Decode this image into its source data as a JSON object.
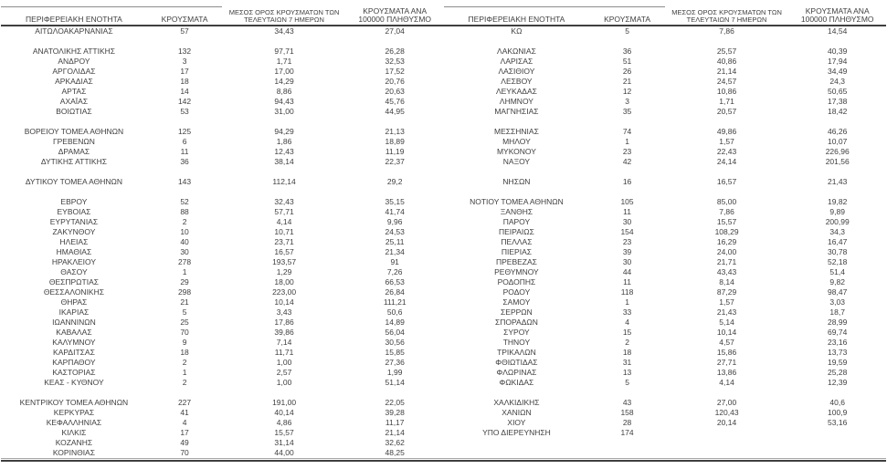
{
  "colors": {
    "text": "#3f3f3f",
    "thin_line": "#8c8c8c",
    "header_underline": "#595959",
    "thick_line": "#3f3f3f",
    "bottom_thin_line": "#a6a6a6"
  },
  "table": {
    "columns": [
      "ΠΕΡΙΦΕΡΕΙΑΚΗ ΕΝΟΤΗΤΑ",
      "ΚΡΟΥΣΜΑΤΑ",
      "ΜΕΣΟΣ ΟΡΟΣ ΚΡΟΥΣΜΑΤΩΝ ΤΩΝ ΤΕΛΕΥΤΑΙΩΝ 7 ΗΜΕΡΩΝ",
      "ΚΡΟΥΣΜΑΤΑ ΑΝΑ 100000 ΠΛΗΘΥΣΜΟ"
    ],
    "left_rows": [
      [
        "ΑΙΤΩΛΟΑΚΑΡΝΑΝΙΑΣ",
        "57",
        "34,43",
        "27,04"
      ],
      null,
      [
        "ΑΝΑΤΟΛΙΚΗΣ ΑΤΤΙΚΗΣ",
        "132",
        "97,71",
        "26,28"
      ],
      [
        "ΑΝΔΡΟΥ",
        "3",
        "1,71",
        "32,53"
      ],
      [
        "ΑΡΓΟΛΙΔΑΣ",
        "17",
        "17,00",
        "17,52"
      ],
      [
        "ΑΡΚΑΔΙΑΣ",
        "18",
        "14,29",
        "20,76"
      ],
      [
        "ΑΡΤΑΣ",
        "14",
        "8,86",
        "20,63"
      ],
      [
        "ΑΧΑΪΑΣ",
        "142",
        "94,43",
        "45,76"
      ],
      [
        "ΒΟΙΩΤΙΑΣ",
        "53",
        "31,00",
        "44,95"
      ],
      null,
      [
        "ΒΟΡΕΙΟΥ ΤΟΜΕΑ ΑΘΗΝΩΝ",
        "125",
        "94,29",
        "21,13"
      ],
      [
        "ΓΡΕΒΕΝΩΝ",
        "6",
        "1,86",
        "18,89"
      ],
      [
        "ΔΡΑΜΑΣ",
        "11",
        "12,43",
        "11,19"
      ],
      [
        "ΔΥΤΙΚΗΣ ΑΤΤΙΚΗΣ",
        "36",
        "38,14",
        "22,37"
      ],
      null,
      [
        "ΔΥΤΙΚΟΥ ΤΟΜΕΑ ΑΘΗΝΩΝ",
        "143",
        "112,14",
        "29,2"
      ],
      null,
      [
        "ΕΒΡΟΥ",
        "52",
        "32,43",
        "35,15"
      ],
      [
        "ΕΥΒΟΙΑΣ",
        "88",
        "57,71",
        "41,74"
      ],
      [
        "ΕΥΡΥΤΑΝΙΑΣ",
        "2",
        "4,14",
        "9,96"
      ],
      [
        "ΖΑΚΥΝΘΟΥ",
        "10",
        "10,71",
        "24,53"
      ],
      [
        "ΗΛΕΙΑΣ",
        "40",
        "23,71",
        "25,11"
      ],
      [
        "ΗΜΑΘΙΑΣ",
        "30",
        "16,57",
        "21,34"
      ],
      [
        "ΗΡΑΚΛΕΙΟΥ",
        "278",
        "193,57",
        "91"
      ],
      [
        "ΘΑΣΟΥ",
        "1",
        "1,29",
        "7,26"
      ],
      [
        "ΘΕΣΠΡΩΤΙΑΣ",
        "29",
        "18,00",
        "66,53"
      ],
      [
        "ΘΕΣΣΑΛΟΝΙΚΗΣ",
        "298",
        "223,00",
        "26,84"
      ],
      [
        "ΘΗΡΑΣ",
        "21",
        "10,14",
        "111,21"
      ],
      [
        "ΙΚΑΡΙΑΣ",
        "5",
        "3,43",
        "50,6"
      ],
      [
        "ΙΩΑΝΝΙΝΩΝ",
        "25",
        "17,86",
        "14,89"
      ],
      [
        "ΚΑΒΑΛΑΣ",
        "70",
        "39,86",
        "56,04"
      ],
      [
        "ΚΑΛΥΜΝΟΥ",
        "9",
        "7,14",
        "30,56"
      ],
      [
        "ΚΑΡΔΙΤΣΑΣ",
        "18",
        "11,71",
        "15,85"
      ],
      [
        "ΚΑΡΠΑΘΟΥ",
        "2",
        "1,00",
        "27,36"
      ],
      [
        "ΚΑΣΤΟΡΙΑΣ",
        "1",
        "2,57",
        "1,99"
      ],
      [
        "ΚΕΑΣ - ΚΥΘΝΟΥ",
        "2",
        "1,00",
        "51,14"
      ],
      null,
      [
        "ΚΕΝΤΡΙΚΟΥ ΤΟΜΕΑ ΑΘΗΝΩΝ",
        "227",
        "191,00",
        "22,05"
      ],
      [
        "ΚΕΡΚΥΡΑΣ",
        "41",
        "40,14",
        "39,28"
      ],
      [
        "ΚΕΦΑΛΛΗΝΙΑΣ",
        "4",
        "4,86",
        "11,17"
      ],
      [
        "ΚΙΛΚΙΣ",
        "17",
        "15,57",
        "21,14"
      ],
      [
        "ΚΟΖΑΝΗΣ",
        "49",
        "31,14",
        "32,62"
      ],
      [
        "ΚΟΡΙΝΘΙΑΣ",
        "70",
        "44,00",
        "48,25"
      ]
    ],
    "right_rows": [
      [
        "ΚΩ",
        "5",
        "7,86",
        "14,54"
      ],
      null,
      [
        "ΛΑΚΩΝΙΑΣ",
        "36",
        "25,57",
        "40,39"
      ],
      [
        "ΛΑΡΙΣΑΣ",
        "51",
        "40,86",
        "17,94"
      ],
      [
        "ΛΑΣΙΘΙΟΥ",
        "26",
        "21,14",
        "34,49"
      ],
      [
        "ΛΕΣΒΟΥ",
        "21",
        "24,57",
        "24,3"
      ],
      [
        "ΛΕΥΚΑΔΑΣ",
        "12",
        "10,86",
        "50,65"
      ],
      [
        "ΛΗΜΝΟΥ",
        "3",
        "1,71",
        "17,38"
      ],
      [
        "ΜΑΓΝΗΣΙΑΣ",
        "35",
        "20,57",
        "18,42"
      ],
      null,
      [
        "ΜΕΣΣΗΝΙΑΣ",
        "74",
        "49,86",
        "46,26"
      ],
      [
        "ΜΗΛΟΥ",
        "1",
        "1,57",
        "10,07"
      ],
      [
        "ΜΥΚΟΝΟΥ",
        "23",
        "22,43",
        "226,96"
      ],
      [
        "ΝΑΞΟΥ",
        "42",
        "24,14",
        "201,56"
      ],
      null,
      [
        "ΝΗΣΩΝ",
        "16",
        "16,57",
        "21,43"
      ],
      null,
      [
        "ΝΟΤΙΟΥ ΤΟΜΕΑ ΑΘΗΝΩΝ",
        "105",
        "85,00",
        "19,82"
      ],
      [
        "ΞΑΝΘΗΣ",
        "11",
        "7,86",
        "9,89"
      ],
      [
        "ΠΑΡΟΥ",
        "30",
        "15,57",
        "200,99"
      ],
      [
        "ΠΕΙΡΑΙΩΣ",
        "154",
        "108,29",
        "34,3"
      ],
      [
        "ΠΕΛΛΑΣ",
        "23",
        "16,29",
        "16,47"
      ],
      [
        "ΠΙΕΡΙΑΣ",
        "39",
        "24,00",
        "30,78"
      ],
      [
        "ΠΡΕΒΕΖΑΣ",
        "30",
        "21,71",
        "52,18"
      ],
      [
        "ΡΕΘΥΜΝΟΥ",
        "44",
        "43,43",
        "51,4"
      ],
      [
        "ΡΟΔΟΠΗΣ",
        "11",
        "8,14",
        "9,82"
      ],
      [
        "ΡΟΔΟΥ",
        "118",
        "87,29",
        "98,47"
      ],
      [
        "ΣΑΜΟΥ",
        "1",
        "1,57",
        "3,03"
      ],
      [
        "ΣΕΡΡΩΝ",
        "33",
        "21,43",
        "18,7"
      ],
      [
        "ΣΠΟΡΑΔΩΝ",
        "4",
        "5,14",
        "28,99"
      ],
      [
        "ΣΥΡΟΥ",
        "15",
        "10,14",
        "69,74"
      ],
      [
        "ΤΗΝΟΥ",
        "2",
        "4,57",
        "23,16"
      ],
      [
        "ΤΡΙΚΑΛΩΝ",
        "18",
        "15,86",
        "13,73"
      ],
      [
        "ΦΘΙΩΤΙΔΑΣ",
        "31",
        "27,71",
        "19,59"
      ],
      [
        "ΦΛΩΡΙΝΑΣ",
        "13",
        "13,86",
        "25,28"
      ],
      [
        "ΦΩΚΙΔΑΣ",
        "5",
        "4,14",
        "12,39"
      ],
      null,
      [
        "ΧΑΛΚΙΔΙΚΗΣ",
        "43",
        "27,00",
        "40,6"
      ],
      [
        "ΧΑΝΙΩΝ",
        "158",
        "120,43",
        "100,9"
      ],
      [
        "ΧΙΟΥ",
        "28",
        "20,14",
        "53,16"
      ],
      [
        "ΥΠΟ ΔΙΕΡΕΥΝΗΣΗ",
        "174",
        "",
        ""
      ],
      null,
      null
    ]
  }
}
